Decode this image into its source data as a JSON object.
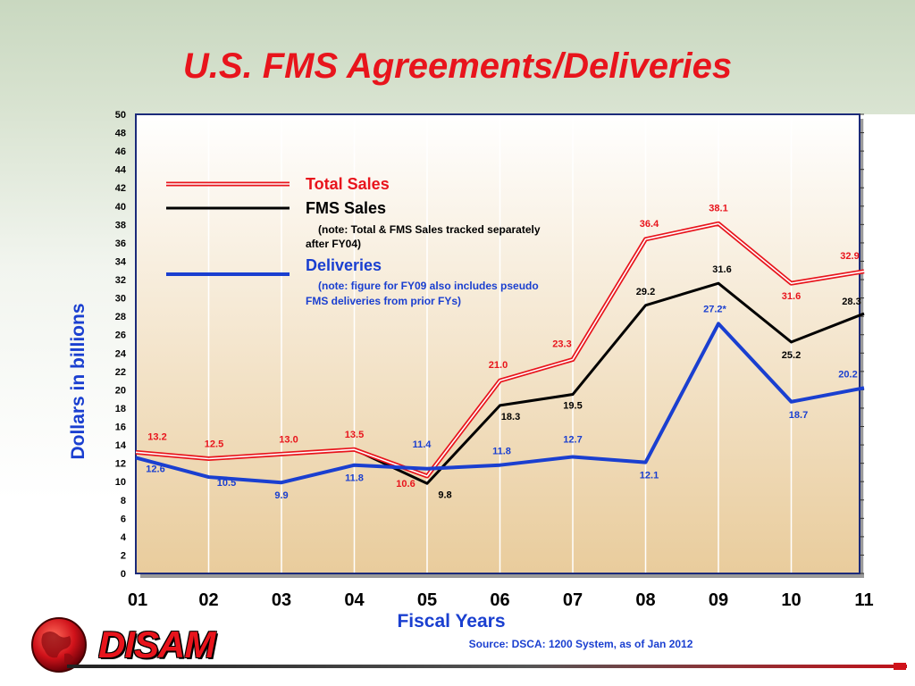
{
  "title": "U.S. FMS Agreements/Deliveries",
  "source": "Source: DSCA: 1200 System, as of Jan 2012",
  "logo_text": "DISAM",
  "colors": {
    "title": "#e8141c",
    "total_sales": "#e8141c",
    "fms_sales": "#000000",
    "deliveries": "#1a3fd0",
    "plot_top": "#ffffff",
    "plot_bottom": "#e9cc9c",
    "axis_labels": "#1a3fd0"
  },
  "legend": {
    "total_sales": "Total Sales",
    "fms_sales": "FMS Sales",
    "fms_note": "(note: Total & FMS Sales tracked separately after FY04)",
    "deliveries": "Deliveries",
    "deliveries_note": "(note: figure for FY09 also includes pseudo FMS deliveries from prior FYs)"
  },
  "chart_data": {
    "type": "line",
    "xlabel": "Fiscal Years",
    "ylabel": "Dollars in billions",
    "x": [
      "01",
      "02",
      "03",
      "04",
      "05",
      "06",
      "07",
      "08",
      "09",
      "10",
      "11"
    ],
    "ylim": [
      0,
      50
    ],
    "yticks": [
      "0",
      "2",
      "4",
      "6",
      "8",
      "10",
      "12",
      "14",
      "16",
      "18",
      "20",
      "22",
      "24",
      "26",
      "28",
      "30",
      "32",
      "34",
      "36",
      "38",
      "40",
      "42",
      "44",
      "46",
      "48",
      "50"
    ],
    "grid": "vertical",
    "series": [
      {
        "name": "Total Sales",
        "values": [
          13.2,
          12.5,
          13.0,
          13.5,
          10.6,
          21.0,
          23.3,
          36.4,
          38.1,
          31.6,
          32.9
        ],
        "labels": [
          "13.2",
          "12.5",
          "13.0",
          "13.5",
          "10.6",
          "21.0",
          "23.3",
          "36.4",
          "38.1",
          "31.6",
          "32.9"
        ]
      },
      {
        "name": "FMS Sales",
        "values": [
          13.2,
          12.5,
          13.0,
          13.5,
          9.8,
          18.3,
          19.5,
          29.2,
          31.6,
          25.2,
          28.3
        ],
        "labels": [
          null,
          null,
          null,
          null,
          "9.8",
          "18.3",
          "19.5",
          "29.2",
          "31.6",
          "25.2",
          "28.3"
        ]
      },
      {
        "name": "Deliveries",
        "values": [
          12.6,
          10.5,
          9.9,
          11.8,
          11.4,
          11.8,
          12.7,
          12.1,
          27.2,
          18.7,
          20.2
        ],
        "labels": [
          "12.6",
          "10.5",
          "9.9",
          "11.8",
          "11.4",
          "11.8",
          "12.7",
          "12.1",
          "27.2*",
          "18.7",
          "20.2"
        ]
      }
    ]
  }
}
